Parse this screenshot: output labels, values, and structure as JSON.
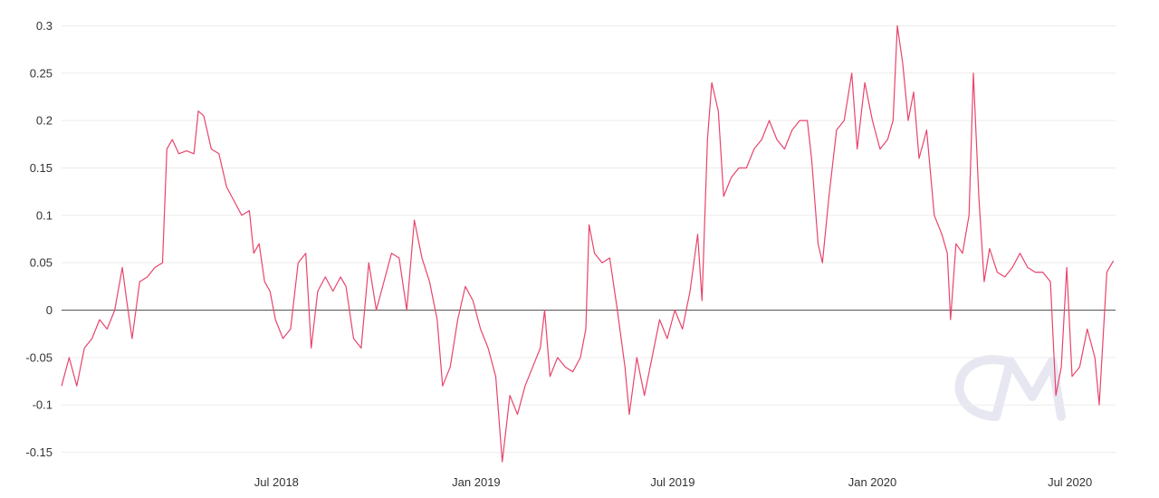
{
  "chart_data": {
    "type": "line",
    "title": "",
    "xlabel": "",
    "ylabel": "",
    "grid": true,
    "legend": "none",
    "watermark": "CM",
    "color": "#e8446b",
    "zero_line_color": "#555555",
    "y_ticks": [
      "0.3",
      "0.25",
      "0.2",
      "0.15",
      "0.1",
      "0.05",
      "0",
      "-0.05",
      "-0.1",
      "-0.15"
    ],
    "y_tick_values": [
      0.3,
      0.25,
      0.2,
      0.15,
      0.1,
      0.05,
      0,
      -0.05,
      -0.1,
      -0.15
    ],
    "ylim": [
      -0.16,
      0.31
    ],
    "xlim": [
      "2017-12-15",
      "2020-08-12"
    ],
    "x_ticks": [
      {
        "label": "Jul 2018",
        "date": "2018-07-01"
      },
      {
        "label": "Jan 2019",
        "date": "2019-01-01"
      },
      {
        "label": "Jul 2019",
        "date": "2019-07-01"
      },
      {
        "label": "Jan 2020",
        "date": "2020-01-01"
      },
      {
        "label": "Jul 2020",
        "date": "2020-07-01"
      }
    ],
    "series": [
      {
        "points": [
          [
            "2017-12-15",
            -0.08
          ],
          [
            "2017-12-22",
            -0.05
          ],
          [
            "2017-12-29",
            -0.08
          ],
          [
            "2018-01-05",
            -0.04
          ],
          [
            "2018-01-12",
            -0.03
          ],
          [
            "2018-01-19",
            -0.01
          ],
          [
            "2018-01-26",
            -0.02
          ],
          [
            "2018-02-02",
            0.0
          ],
          [
            "2018-02-09",
            0.045
          ],
          [
            "2018-02-13",
            0.01
          ],
          [
            "2018-02-18",
            -0.03
          ],
          [
            "2018-02-25",
            0.03
          ],
          [
            "2018-03-04",
            0.035
          ],
          [
            "2018-03-11",
            0.045
          ],
          [
            "2018-03-18",
            0.05
          ],
          [
            "2018-03-22",
            0.17
          ],
          [
            "2018-03-27",
            0.18
          ],
          [
            "2018-04-02",
            0.165
          ],
          [
            "2018-04-09",
            0.168
          ],
          [
            "2018-04-16",
            0.165
          ],
          [
            "2018-04-20",
            0.21
          ],
          [
            "2018-04-25",
            0.205
          ],
          [
            "2018-05-02",
            0.17
          ],
          [
            "2018-05-09",
            0.165
          ],
          [
            "2018-05-16",
            0.13
          ],
          [
            "2018-05-23",
            0.115
          ],
          [
            "2018-05-30",
            0.1
          ],
          [
            "2018-06-06",
            0.105
          ],
          [
            "2018-06-10",
            0.06
          ],
          [
            "2018-06-15",
            0.07
          ],
          [
            "2018-06-20",
            0.03
          ],
          [
            "2018-06-25",
            0.02
          ],
          [
            "2018-06-30",
            -0.01
          ],
          [
            "2018-07-07",
            -0.03
          ],
          [
            "2018-07-14",
            -0.02
          ],
          [
            "2018-07-21",
            0.05
          ],
          [
            "2018-07-28",
            0.06
          ],
          [
            "2018-08-02",
            -0.04
          ],
          [
            "2018-08-08",
            0.02
          ],
          [
            "2018-08-15",
            0.035
          ],
          [
            "2018-08-22",
            0.02
          ],
          [
            "2018-08-29",
            0.035
          ],
          [
            "2018-09-03",
            0.025
          ],
          [
            "2018-09-10",
            -0.03
          ],
          [
            "2018-09-17",
            -0.04
          ],
          [
            "2018-09-24",
            0.05
          ],
          [
            "2018-10-01",
            0.0
          ],
          [
            "2018-10-08",
            0.03
          ],
          [
            "2018-10-15",
            0.06
          ],
          [
            "2018-10-22",
            0.055
          ],
          [
            "2018-10-29",
            0.0
          ],
          [
            "2018-11-05",
            0.095
          ],
          [
            "2018-11-12",
            0.055
          ],
          [
            "2018-11-19",
            0.03
          ],
          [
            "2018-11-26",
            -0.01
          ],
          [
            "2018-12-01",
            -0.08
          ],
          [
            "2018-12-08",
            -0.06
          ],
          [
            "2018-12-15",
            -0.01
          ],
          [
            "2018-12-22",
            0.025
          ],
          [
            "2018-12-29",
            0.01
          ],
          [
            "2019-01-05",
            -0.02
          ],
          [
            "2019-01-12",
            -0.04
          ],
          [
            "2019-01-19",
            -0.07
          ],
          [
            "2019-01-25",
            -0.16
          ],
          [
            "2019-02-01",
            -0.09
          ],
          [
            "2019-02-08",
            -0.11
          ],
          [
            "2019-02-15",
            -0.08
          ],
          [
            "2019-02-22",
            -0.06
          ],
          [
            "2019-03-01",
            -0.04
          ],
          [
            "2019-03-05",
            0.0
          ],
          [
            "2019-03-10",
            -0.07
          ],
          [
            "2019-03-17",
            -0.05
          ],
          [
            "2019-03-24",
            -0.06
          ],
          [
            "2019-03-31",
            -0.065
          ],
          [
            "2019-04-07",
            -0.05
          ],
          [
            "2019-04-12",
            -0.02
          ],
          [
            "2019-04-15",
            0.09
          ],
          [
            "2019-04-20",
            0.06
          ],
          [
            "2019-04-27",
            0.05
          ],
          [
            "2019-05-04",
            0.055
          ],
          [
            "2019-05-11",
            0.0
          ],
          [
            "2019-05-18",
            -0.06
          ],
          [
            "2019-05-22",
            -0.11
          ],
          [
            "2019-05-29",
            -0.05
          ],
          [
            "2019-06-05",
            -0.09
          ],
          [
            "2019-06-12",
            -0.05
          ],
          [
            "2019-06-19",
            -0.01
          ],
          [
            "2019-06-26",
            -0.03
          ],
          [
            "2019-07-03",
            0.0
          ],
          [
            "2019-07-10",
            -0.02
          ],
          [
            "2019-07-17",
            0.02
          ],
          [
            "2019-07-24",
            0.08
          ],
          [
            "2019-07-28",
            0.01
          ],
          [
            "2019-08-02",
            0.18
          ],
          [
            "2019-08-06",
            0.24
          ],
          [
            "2019-08-12",
            0.21
          ],
          [
            "2019-08-17",
            0.12
          ],
          [
            "2019-08-24",
            0.14
          ],
          [
            "2019-08-31",
            0.15
          ],
          [
            "2019-09-07",
            0.15
          ],
          [
            "2019-09-14",
            0.17
          ],
          [
            "2019-09-21",
            0.18
          ],
          [
            "2019-09-28",
            0.2
          ],
          [
            "2019-10-05",
            0.18
          ],
          [
            "2019-10-12",
            0.17
          ],
          [
            "2019-10-19",
            0.19
          ],
          [
            "2019-10-26",
            0.2
          ],
          [
            "2019-11-02",
            0.2
          ],
          [
            "2019-11-06",
            0.16
          ],
          [
            "2019-11-12",
            0.07
          ],
          [
            "2019-11-16",
            0.05
          ],
          [
            "2019-11-22",
            0.12
          ],
          [
            "2019-11-29",
            0.19
          ],
          [
            "2019-12-06",
            0.2
          ],
          [
            "2019-12-13",
            0.25
          ],
          [
            "2019-12-18",
            0.17
          ],
          [
            "2019-12-25",
            0.24
          ],
          [
            "2020-01-01",
            0.2
          ],
          [
            "2020-01-08",
            0.17
          ],
          [
            "2020-01-15",
            0.18
          ],
          [
            "2020-01-20",
            0.2
          ],
          [
            "2020-01-24",
            0.3
          ],
          [
            "2020-01-29",
            0.26
          ],
          [
            "2020-02-03",
            0.2
          ],
          [
            "2020-02-08",
            0.23
          ],
          [
            "2020-02-13",
            0.16
          ],
          [
            "2020-02-20",
            0.19
          ],
          [
            "2020-02-27",
            0.1
          ],
          [
            "2020-03-05",
            0.08
          ],
          [
            "2020-03-10",
            0.06
          ],
          [
            "2020-03-13",
            -0.01
          ],
          [
            "2020-03-18",
            0.07
          ],
          [
            "2020-03-24",
            0.06
          ],
          [
            "2020-03-30",
            0.1
          ],
          [
            "2020-04-03",
            0.25
          ],
          [
            "2020-04-08",
            0.12
          ],
          [
            "2020-04-13",
            0.03
          ],
          [
            "2020-04-18",
            0.065
          ],
          [
            "2020-04-25",
            0.04
          ],
          [
            "2020-05-02",
            0.035
          ],
          [
            "2020-05-09",
            0.045
          ],
          [
            "2020-05-16",
            0.06
          ],
          [
            "2020-05-23",
            0.045
          ],
          [
            "2020-05-30",
            0.04
          ],
          [
            "2020-06-06",
            0.04
          ],
          [
            "2020-06-13",
            0.03
          ],
          [
            "2020-06-18",
            -0.09
          ],
          [
            "2020-06-23",
            -0.06
          ],
          [
            "2020-06-28",
            0.045
          ],
          [
            "2020-07-03",
            -0.07
          ],
          [
            "2020-07-10",
            -0.06
          ],
          [
            "2020-07-17",
            -0.02
          ],
          [
            "2020-07-24",
            -0.05
          ],
          [
            "2020-07-28",
            -0.1
          ],
          [
            "2020-08-04",
            0.04
          ],
          [
            "2020-08-10",
            0.052
          ]
        ]
      }
    ]
  }
}
